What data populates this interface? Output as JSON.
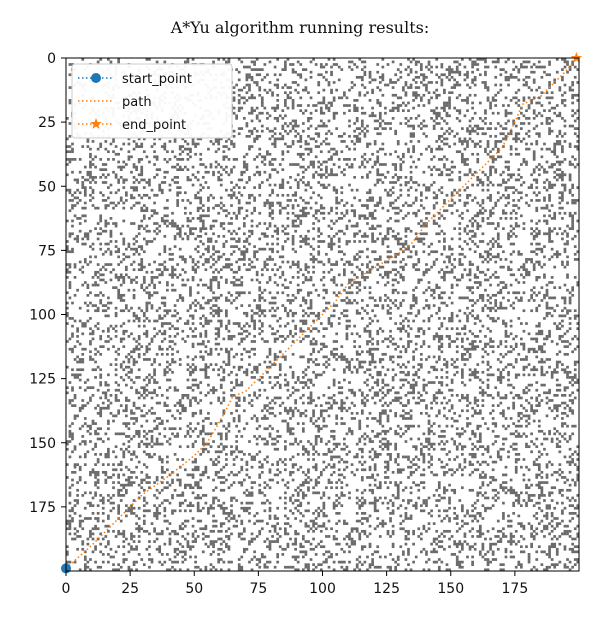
{
  "chart_data": {
    "type": "scatter",
    "title": "A*Yu algorithm running results:",
    "xlabel": "",
    "ylabel": "",
    "xlim": [
      0,
      200
    ],
    "ylim": [
      200,
      0
    ],
    "x_ticks": [
      "0",
      "25",
      "50",
      "75",
      "100",
      "125",
      "150",
      "175"
    ],
    "y_ticks": [
      "0",
      "25",
      "50",
      "75",
      "100",
      "125",
      "150",
      "175"
    ],
    "grid": false,
    "legend_position": "top-left",
    "obstacle_density": 0.22,
    "series": [
      {
        "name": "start_point",
        "marker": "circle",
        "color": "#1f77b4",
        "x": [
          0
        ],
        "y": [
          199
        ]
      },
      {
        "name": "path",
        "marker": "dotted-line",
        "color": "#ff7f0e",
        "x": [
          0,
          10,
          20,
          30,
          40,
          50,
          55,
          58,
          62,
          65,
          70,
          80,
          90,
          100,
          105,
          110,
          120,
          130,
          135,
          138,
          140,
          150,
          160,
          170,
          175,
          178,
          185,
          190,
          195,
          199
        ],
        "y": [
          199,
          190,
          180,
          170,
          163,
          155,
          150,
          145,
          138,
          132,
          130,
          120,
          110,
          100,
          95,
          88,
          82,
          76,
          72,
          68,
          65,
          55,
          45,
          35,
          25,
          18,
          15,
          10,
          5,
          0
        ]
      },
      {
        "name": "end_point",
        "marker": "star",
        "color": "#ff7f0e",
        "x": [
          199
        ],
        "y": [
          0
        ]
      }
    ]
  }
}
